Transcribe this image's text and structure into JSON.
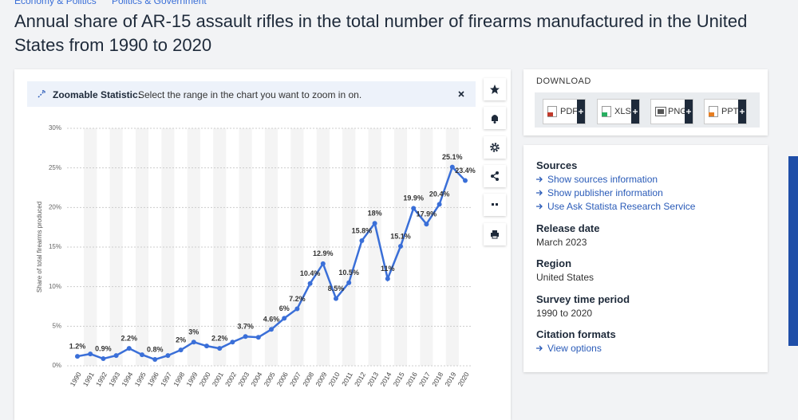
{
  "breadcrumb": [
    "Economy & Politics",
    "Politics & Government"
  ],
  "title": "Annual share of AR-15 assault rifles in the total number of firearms manufactured in the United States from 1990 to 2020",
  "banner": {
    "label": "Zoomable Statistic:",
    "text": "Select the range in the chart you want to zoom in on."
  },
  "download": {
    "title": "DOWNLOAD",
    "formats": [
      "PDF",
      "XLS",
      "PNG",
      "PPT"
    ]
  },
  "details": {
    "sources": {
      "heading": "Sources",
      "links": [
        "Show sources information",
        "Show publisher information",
        "Use Ask Statista Research Service"
      ]
    },
    "release_date": {
      "heading": "Release date",
      "value": "March 2023"
    },
    "region": {
      "heading": "Region",
      "value": "United States"
    },
    "survey_period": {
      "heading": "Survey time period",
      "value": "1990 to 2020"
    },
    "citation": {
      "heading": "Citation formats",
      "link": "View options"
    }
  },
  "chart_data": {
    "type": "line",
    "y_label": "Share of total firearms produced",
    "categories": [
      "1990",
      "1991",
      "1992",
      "1993",
      "1994",
      "1995",
      "1996",
      "1997",
      "1998",
      "1999",
      "2000",
      "2001",
      "2002",
      "2003",
      "2004",
      "2005",
      "2006",
      "2007",
      "2008",
      "2009",
      "2010",
      "2011",
      "2012",
      "2013",
      "2014",
      "2015",
      "2016",
      "2017",
      "2018",
      "2019",
      "2020"
    ],
    "values": [
      1.2,
      1.5,
      0.9,
      1.3,
      2.2,
      1.4,
      0.8,
      1.3,
      2,
      3,
      2.5,
      2.2,
      3,
      3.7,
      3.6,
      4.6,
      6,
      7.2,
      10.4,
      12.9,
      8.5,
      10.5,
      15.8,
      18,
      11,
      15.1,
      19.9,
      17.9,
      20.4,
      25.1,
      23.4
    ],
    "value_labels": [
      "1.2%",
      null,
      "0.9%",
      null,
      "2.2%",
      null,
      "0.8%",
      null,
      "2%",
      "3%",
      null,
      "2.2%",
      null,
      "3.7%",
      null,
      "4.6%",
      "6%",
      "7.2%",
      "10.4%",
      "12.9%",
      "8.5%",
      "10.5%",
      "15.8%",
      "18%",
      "11%",
      "15.1%",
      "19.9%",
      "17.9%",
      "20.4%",
      "25.1%",
      "23.4%"
    ],
    "color": "#3a6fd8",
    "ylim": [
      0,
      30
    ],
    "yticks": [
      {
        "value": 0,
        "label": "0%"
      },
      {
        "value": 5,
        "label": "5%"
      },
      {
        "value": 10,
        "label": "10%"
      },
      {
        "value": 15,
        "label": "15%"
      },
      {
        "value": 20,
        "label": "20%"
      },
      {
        "value": 25,
        "label": "25%"
      },
      {
        "value": 30,
        "label": "30%"
      }
    ],
    "grid": true
  }
}
